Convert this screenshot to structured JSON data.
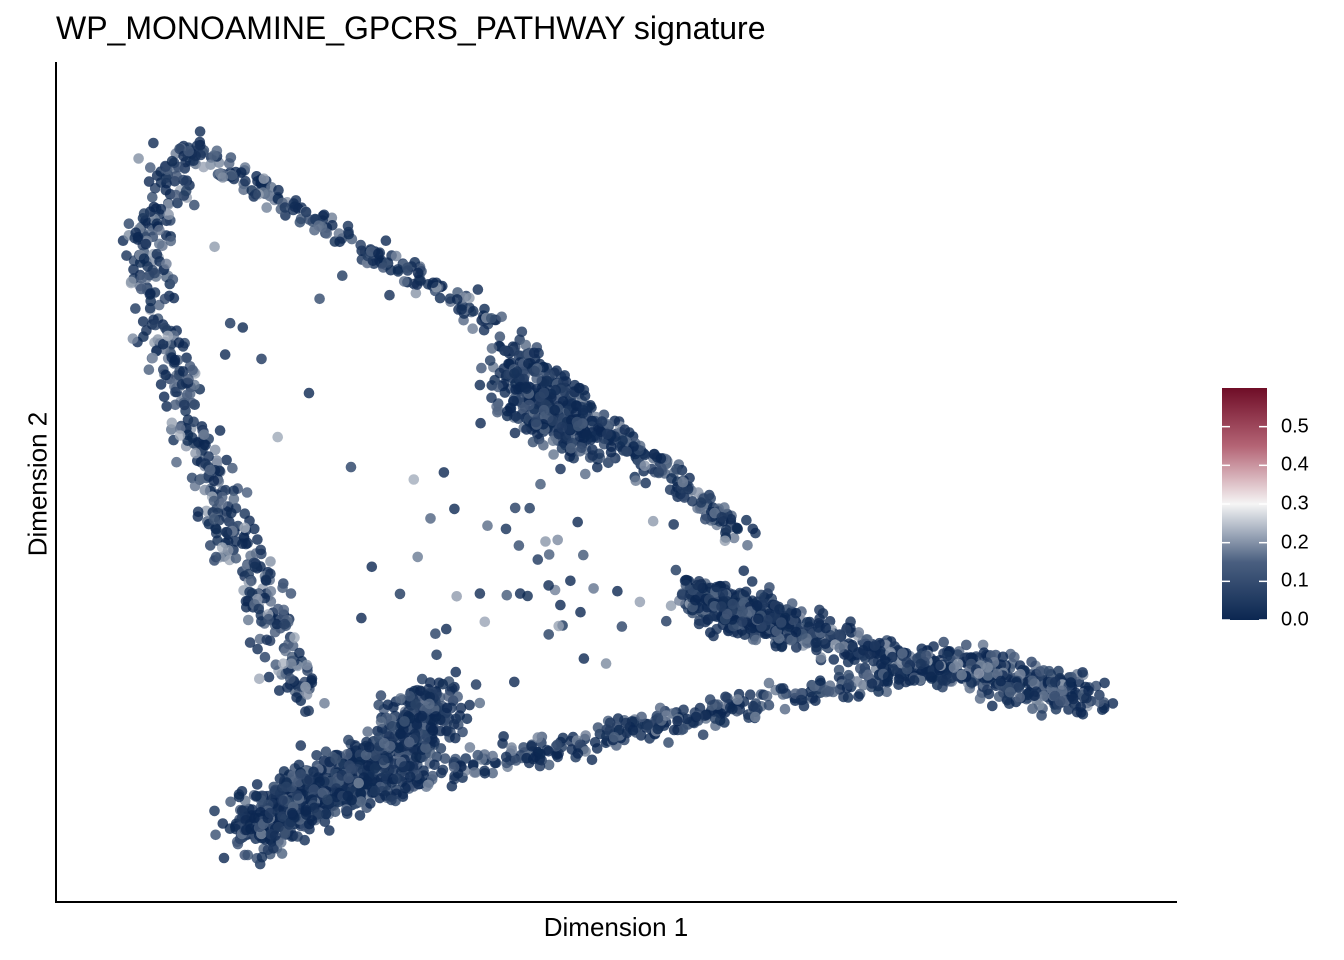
{
  "chart_data": {
    "type": "scatter",
    "title": "WP_MONOAMINE_GPCRS_PATHWAY signature",
    "xlabel": "Dimension 1",
    "ylabel": "Dimension 2",
    "xlim": [
      0,
      100
    ],
    "ylim": [
      0,
      100
    ],
    "grid": false,
    "axis_ticks_shown": false,
    "legend": {
      "position": "right",
      "type": "colorbar",
      "range": [
        0,
        0.6
      ],
      "ticks": [
        "0.0",
        "0.1",
        "0.2",
        "0.3",
        "0.4",
        "0.5"
      ],
      "colors": {
        "low": "#0b2751",
        "mid": "#f5f5f5",
        "high": "#6f0d27"
      }
    },
    "point_color_default": "#0b2751",
    "point_opacity": 0.8,
    "clusters": [
      {
        "name": "upper-left-arc",
        "value_range": [
          0.0,
          0.18
        ],
        "n": 420,
        "path": [
          [
            9,
            93
          ],
          [
            11,
            92
          ],
          [
            14,
            89
          ],
          [
            18,
            86
          ],
          [
            22,
            83
          ],
          [
            26,
            80
          ],
          [
            30,
            77
          ],
          [
            34,
            74
          ],
          [
            38,
            71
          ],
          [
            40,
            68
          ],
          [
            43,
            64
          ],
          [
            46,
            60
          ],
          [
            50,
            56
          ],
          [
            53,
            53
          ],
          [
            57,
            49
          ],
          [
            60,
            45
          ],
          [
            63,
            43
          ]
        ],
        "spread": 0.8
      },
      {
        "name": "left-descending-arm",
        "value_range": [
          0.0,
          0.2
        ],
        "n": 480,
        "path": [
          [
            9,
            93
          ],
          [
            7,
            88
          ],
          [
            5,
            82
          ],
          [
            5,
            76
          ],
          [
            6,
            70
          ],
          [
            8,
            62
          ],
          [
            10,
            55
          ],
          [
            12,
            48
          ],
          [
            14,
            41
          ],
          [
            16,
            35
          ],
          [
            18,
            28
          ],
          [
            20,
            22
          ]
        ],
        "spread": 1.2
      },
      {
        "name": "bottom-left-dense",
        "value_range": [
          0.0,
          0.12
        ],
        "n": 900,
        "path": [
          [
            15,
            5
          ],
          [
            18,
            8
          ],
          [
            21,
            10
          ],
          [
            24,
            12
          ],
          [
            27,
            14
          ],
          [
            30,
            17
          ],
          [
            33,
            22
          ]
        ],
        "spread": 1.8
      },
      {
        "name": "bottom-arm",
        "value_range": [
          0.0,
          0.15
        ],
        "n": 600,
        "path": [
          [
            15,
            5
          ],
          [
            25,
            9
          ],
          [
            35,
            13
          ],
          [
            45,
            16
          ],
          [
            55,
            19
          ],
          [
            65,
            22
          ],
          [
            75,
            25
          ],
          [
            85,
            27
          ],
          [
            95,
            23
          ]
        ],
        "spread": 0.9
      },
      {
        "name": "right-arm",
        "value_range": [
          0.0,
          0.2
        ],
        "n": 650,
        "path": [
          [
            57,
            35
          ],
          [
            62,
            33
          ],
          [
            67,
            31
          ],
          [
            72,
            29
          ],
          [
            77,
            27
          ],
          [
            82,
            26
          ],
          [
            87,
            24
          ],
          [
            92,
            23
          ],
          [
            96,
            22
          ]
        ],
        "spread": 1.2
      },
      {
        "name": "mid-dense-blob",
        "value_range": [
          0.0,
          0.12
        ],
        "n": 320,
        "path": [
          [
            40,
            64
          ],
          [
            42,
            61
          ],
          [
            44,
            58
          ],
          [
            46,
            56
          ],
          [
            48,
            55
          ]
        ],
        "spread": 1.6
      },
      {
        "name": "right-blob",
        "value_range": [
          0.0,
          0.12
        ],
        "n": 300,
        "path": [
          [
            58,
            36
          ],
          [
            61,
            34
          ],
          [
            64,
            33
          ],
          [
            67,
            31
          ]
        ],
        "spread": 1.4
      },
      {
        "name": "scattered-interior",
        "value_range": [
          0.0,
          0.2
        ],
        "n": 60,
        "path": [
          [
            15,
            80
          ],
          [
            22,
            60
          ],
          [
            30,
            50
          ],
          [
            40,
            40
          ],
          [
            50,
            30
          ],
          [
            45,
            45
          ],
          [
            35,
            30
          ],
          [
            25,
            45
          ]
        ],
        "spread": 6
      }
    ]
  }
}
